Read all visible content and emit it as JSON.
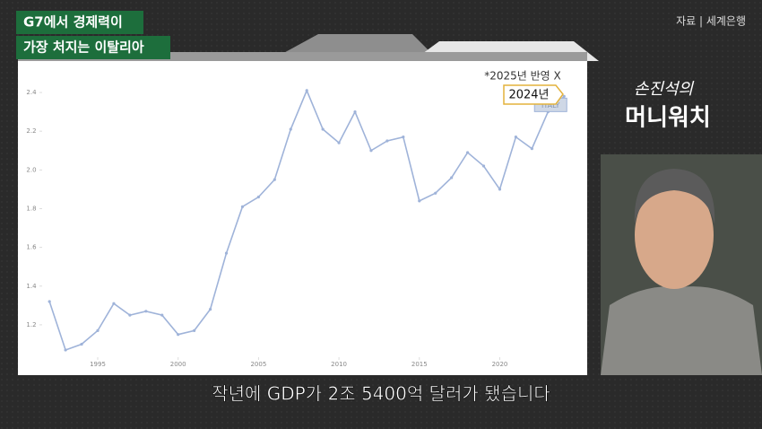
{
  "headline": [
    "G7에서 경제력이",
    "가장 처지는 이탈리아"
  ],
  "source": "자료 | 세계은행",
  "logo": [
    "손진석의",
    "머니워치"
  ],
  "caption": "작년에 GDP가 2조 5400억 달러가 됐습니다",
  "chart_data": {
    "type": "line",
    "x": [
      1992,
      1993,
      1994,
      1995,
      1996,
      1997,
      1998,
      1999,
      2000,
      2001,
      2002,
      2003,
      2004,
      2005,
      2006,
      2007,
      2008,
      2009,
      2010,
      2011,
      2012,
      2013,
      2014,
      2015,
      2016,
      2017,
      2018,
      2019,
      2020,
      2021,
      2022,
      2023,
      2024
    ],
    "series": [
      {
        "name": "ITALY",
        "color": "#9fb3d9",
        "values": [
          1.32,
          1.07,
          1.1,
          1.17,
          1.31,
          1.25,
          1.27,
          1.25,
          1.15,
          1.17,
          1.28,
          1.57,
          1.81,
          1.86,
          1.95,
          2.21,
          2.41,
          2.21,
          2.14,
          2.3,
          2.1,
          2.15,
          2.17,
          1.84,
          1.88,
          1.96,
          2.09,
          2.02,
          1.9,
          2.17,
          2.11,
          2.3,
          2.38
        ]
      }
    ],
    "xlim": [
      1991.6,
      2024.6
    ],
    "xticks": [
      1995,
      2000,
      2005,
      2010,
      2015,
      2020
    ],
    "ylim": [
      0.94,
      2.53
    ],
    "yticks": [
      1.2,
      1.4,
      1.6,
      1.8,
      {
        "value": 2,
        "label": "2.0"
      },
      2.2,
      2.4
    ],
    "annotations": [
      "*2025년 반영 X",
      "2024년"
    ],
    "grid": false
  }
}
